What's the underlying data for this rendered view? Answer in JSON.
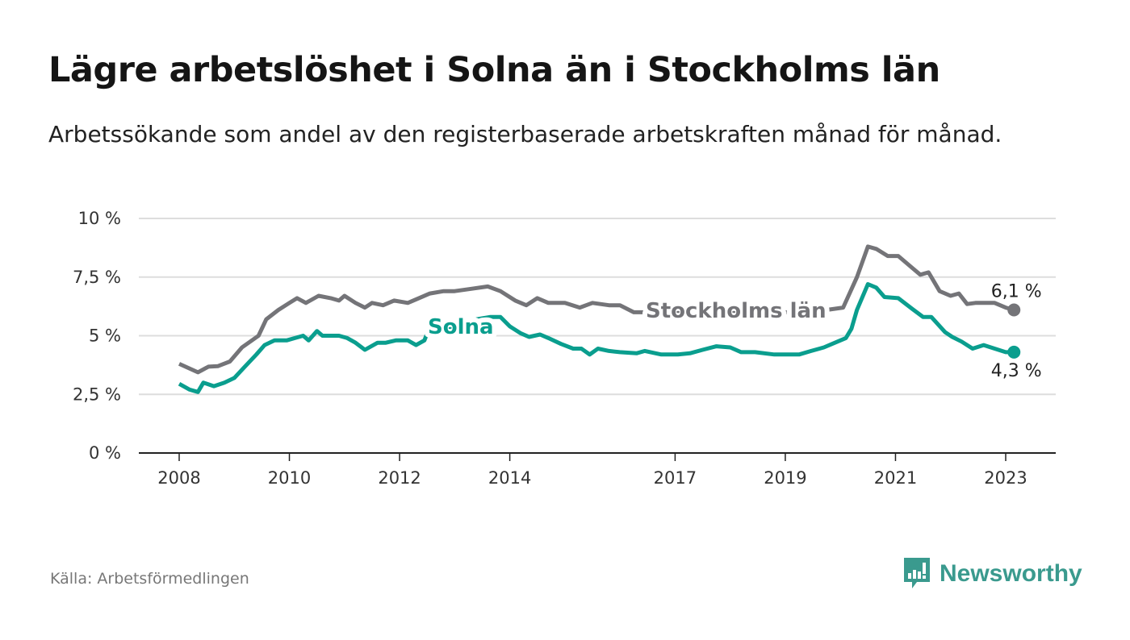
{
  "header": {
    "title": "Lägre arbetslöshet i Solna än i Stockholms län",
    "subtitle": "Arbetssökande som andel av den registerbaserade arbetskraften månad för månad."
  },
  "footer": {
    "source": "Källa: Arbetsförmedlingen",
    "brand": "Newsworthy"
  },
  "colors": {
    "stockholm": "#747478",
    "solna": "#0a9e8e",
    "grid": "#dddddd",
    "brand": "#3a9a8e"
  },
  "chart_data": {
    "type": "line",
    "title": "Lägre arbetslöshet i Solna än i Stockholms län",
    "xlabel": "",
    "ylabel": "",
    "xlim": [
      2007.3,
      2023.9
    ],
    "ylim": [
      0,
      10
    ],
    "grid": true,
    "x_ticks": [
      2008,
      2010,
      2012,
      2014,
      2017,
      2019,
      2021,
      2023
    ],
    "x_tick_labels": [
      "2008",
      "2010",
      "2012",
      "2014",
      "2017",
      "2019",
      "2021",
      "2023"
    ],
    "y_ticks": [
      0,
      2.5,
      5,
      7.5,
      10
    ],
    "y_tick_labels": [
      "0 %",
      "2,5 %",
      "5 %",
      "7,5 %",
      "10 %"
    ],
    "series": [
      {
        "name": "Stockholms län",
        "end_label": "6,1 %",
        "x": [
          2008.0,
          2008.34,
          2008.53,
          2008.7,
          2008.92,
          2009.14,
          2009.44,
          2009.58,
          2009.8,
          2010.0,
          2010.14,
          2010.3,
          2010.53,
          2010.75,
          2010.9,
          2011.0,
          2011.2,
          2011.37,
          2011.5,
          2011.7,
          2011.9,
          2012.15,
          2012.35,
          2012.55,
          2012.8,
          2013.0,
          2013.3,
          2013.6,
          2013.83,
          2014.1,
          2014.3,
          2014.5,
          2014.7,
          2015.0,
          2015.27,
          2015.5,
          2015.8,
          2016.0,
          2016.25,
          2016.6,
          2017.0,
          2017.5,
          2018.0,
          2018.5,
          2019.0,
          2019.4,
          2019.75,
          2020.05,
          2020.3,
          2020.5,
          2020.65,
          2020.86,
          2021.05,
          2021.3,
          2021.45,
          2021.6,
          2021.8,
          2022.0,
          2022.15,
          2022.3,
          2022.45,
          2022.8,
          2023.0,
          2023.15
        ],
        "values": [
          3.8,
          3.44,
          3.68,
          3.7,
          3.9,
          4.5,
          5.0,
          5.7,
          6.1,
          6.4,
          6.6,
          6.4,
          6.7,
          6.6,
          6.5,
          6.7,
          6.4,
          6.2,
          6.4,
          6.3,
          6.5,
          6.4,
          6.6,
          6.8,
          6.9,
          6.9,
          7.0,
          7.1,
          6.9,
          6.5,
          6.3,
          6.6,
          6.4,
          6.4,
          6.2,
          6.4,
          6.3,
          6.3,
          6.0,
          6.0,
          6.0,
          6.1,
          6.0,
          6.0,
          6.0,
          6.0,
          6.1,
          6.2,
          7.5,
          8.8,
          8.7,
          8.4,
          8.4,
          7.9,
          7.6,
          7.7,
          6.9,
          6.7,
          6.8,
          6.35,
          6.4,
          6.4,
          6.2,
          6.1
        ]
      },
      {
        "name": "Solna",
        "end_label": "4,3 %",
        "x": [
          2008.0,
          2008.19,
          2008.34,
          2008.44,
          2008.63,
          2008.82,
          2009.0,
          2009.2,
          2009.4,
          2009.55,
          2009.73,
          2009.95,
          2010.1,
          2010.25,
          2010.35,
          2010.5,
          2010.6,
          2010.9,
          2011.05,
          2011.2,
          2011.37,
          2011.6,
          2011.75,
          2011.93,
          2012.15,
          2012.3,
          2012.45,
          2012.5,
          2012.8,
          2013.1,
          2013.4,
          2013.65,
          2013.83,
          2014.0,
          2014.2,
          2014.35,
          2014.55,
          2014.7,
          2014.93,
          2015.15,
          2015.3,
          2015.45,
          2015.6,
          2015.8,
          2016.0,
          2016.3,
          2016.45,
          2016.75,
          2017.05,
          2017.27,
          2017.5,
          2017.75,
          2018.0,
          2018.2,
          2018.45,
          2018.8,
          2019.25,
          2019.47,
          2019.7,
          2019.9,
          2020.1,
          2020.2,
          2020.3,
          2020.5,
          2020.65,
          2020.8,
          2021.05,
          2021.3,
          2021.5,
          2021.65,
          2021.9,
          2022.03,
          2022.2,
          2022.4,
          2022.6,
          2022.8,
          2023.0,
          2023.15
        ],
        "values": [
          2.95,
          2.7,
          2.6,
          3.0,
          2.85,
          3.0,
          3.2,
          3.7,
          4.2,
          4.6,
          4.8,
          4.8,
          4.9,
          5.0,
          4.8,
          5.2,
          5.0,
          5.0,
          4.9,
          4.7,
          4.4,
          4.7,
          4.7,
          4.8,
          4.8,
          4.6,
          4.8,
          5.1,
          5.3,
          5.5,
          5.7,
          5.8,
          5.8,
          5.4,
          5.1,
          4.95,
          5.05,
          4.9,
          4.65,
          4.45,
          4.45,
          4.2,
          4.45,
          4.35,
          4.3,
          4.25,
          4.35,
          4.2,
          4.2,
          4.25,
          4.4,
          4.55,
          4.5,
          4.3,
          4.3,
          4.2,
          4.2,
          4.35,
          4.5,
          4.7,
          4.9,
          5.3,
          6.1,
          7.2,
          7.05,
          6.65,
          6.6,
          6.15,
          5.8,
          5.8,
          5.15,
          4.95,
          4.75,
          4.45,
          4.6,
          4.45,
          4.3,
          4.3
        ]
      }
    ]
  }
}
